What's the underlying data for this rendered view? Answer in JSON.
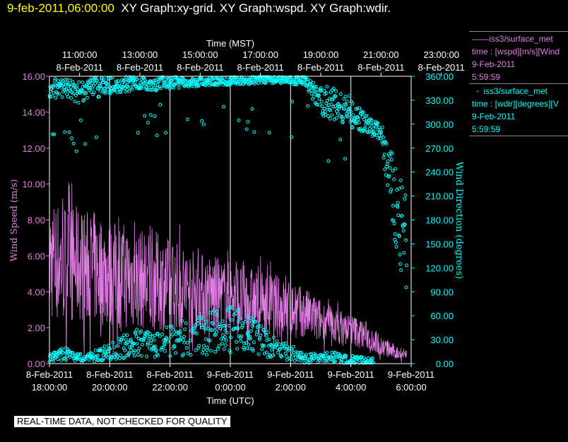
{
  "header": {
    "timestamp": "9-feb-2011,06:00:00",
    "graphs": "XY Graph:xy-grid.  XY Graph:wspd.  XY Graph:wdir."
  },
  "legend": {
    "wspd": {
      "symbol": "——",
      "station": "iss3/surface_met",
      "expr": "time : [wspd][m/s][Wind",
      "date": "9-Feb-2011",
      "time": "5:59:59"
    },
    "wdir": {
      "symbol": "◦",
      "station": "iss3/surface_met",
      "expr": "time : [wdir][degrees][V",
      "date": "9-Feb-2011",
      "time": "5:59:59"
    }
  },
  "note": "REAL-TIME DATA, NOT CHECKED FOR QUALITY",
  "colors": {
    "wspd": "#e17ee4",
    "wdir": "#00ffff",
    "grid": "#ffffff",
    "background": "#000000"
  },
  "chart_data": {
    "type": "line",
    "top_axis": {
      "label": "Time (MST)",
      "ticks": [
        {
          "time": "11:00:00",
          "date": "8-Feb-2011"
        },
        {
          "time": "13:00:00",
          "date": "8-Feb-2011"
        },
        {
          "time": "15:00:00",
          "date": "8-Feb-2011"
        },
        {
          "time": "17:00:00",
          "date": "8-Feb-2011"
        },
        {
          "time": "19:00:00",
          "date": "8-Feb-2011"
        },
        {
          "time": "21:00:00",
          "date": "8-Feb-2011"
        },
        {
          "time": "23:00:00",
          "date": "8-Feb-2011"
        }
      ]
    },
    "bottom_axis": {
      "label": "Time (UTC)",
      "ticks": [
        {
          "date": "8-Feb-2011",
          "time": "18:00:00"
        },
        {
          "date": "8-Feb-2011",
          "time": "20:00:00"
        },
        {
          "date": "8-Feb-2011",
          "time": "22:00:00"
        },
        {
          "date": "9-Feb-2011",
          "time": "0:00:00"
        },
        {
          "date": "9-Feb-2011",
          "time": "2:00:00"
        },
        {
          "date": "9-Feb-2011",
          "time": "4:00:00"
        },
        {
          "date": "9-Feb-2011",
          "time": "6:00:00"
        }
      ]
    },
    "x_range_utc": [
      "2011-02-08 18:00:00",
      "2011-02-09 06:00:00"
    ],
    "y_left": {
      "label": "Wind Speed (m/s)",
      "range": [
        0,
        16
      ],
      "ticks": [
        "0.00",
        "2.00",
        "4.00",
        "6.00",
        "8.00",
        "10.00",
        "12.00",
        "14.00",
        "16.00"
      ]
    },
    "y_right": {
      "label": "Wind Direction (degrees)",
      "range": [
        0,
        360
      ],
      "ticks": [
        "0.00",
        "30.00",
        "60.00",
        "90.00",
        "120.00",
        "150.00",
        "180.00",
        "210.00",
        "240.00",
        "270.00",
        "300.00",
        "330.00",
        "360.00"
      ]
    },
    "grid": true,
    "series": [
      {
        "name": "iss3/surface_met time : [wspd][m/s]",
        "axis": "left",
        "style": "line",
        "x_hours_utc": [
          18,
          18.5,
          19,
          19.5,
          20,
          20.5,
          21,
          21.5,
          22,
          22.5,
          23,
          23.5,
          24,
          24.5,
          25,
          25.5,
          26,
          26.5,
          27,
          27.5,
          28,
          28.5,
          29,
          29.5,
          30
        ],
        "mean": [
          5.8,
          5.6,
          5.5,
          5.3,
          5.0,
          4.9,
          4.7,
          4.6,
          4.4,
          4.2,
          4.0,
          3.8,
          3.7,
          3.5,
          3.3,
          3.2,
          3.0,
          2.8,
          2.4,
          2.1,
          1.9,
          1.6,
          1.0,
          0.6,
          0.5
        ],
        "spread": [
          3.5,
          3.5,
          3.2,
          3.2,
          3.0,
          3.0,
          2.8,
          2.8,
          2.6,
          2.4,
          2.2,
          2.2,
          2.0,
          2.0,
          1.8,
          1.8,
          1.6,
          1.4,
          1.2,
          1.0,
          0.9,
          0.8,
          0.6,
          0.4,
          0.3
        ]
      },
      {
        "name": "iss3/surface_met time : [wdir][degrees]",
        "axis": "right",
        "style": "scatter",
        "x_hours_utc": [
          18,
          18.5,
          19,
          19.5,
          20,
          20.5,
          21,
          21.5,
          22,
          22.5,
          23,
          23.5,
          24,
          24.5,
          25,
          25.5,
          26,
          26.5,
          27,
          27.5,
          28,
          28.5,
          29,
          29.5,
          30
        ],
        "mean": [
          345,
          345,
          344,
          346,
          348,
          350,
          352,
          350,
          352,
          352,
          353,
          354,
          354,
          355,
          356,
          356,
          355,
          354,
          330,
          325,
          315,
          300,
          290,
          190,
          130
        ],
        "spread": [
          12,
          12,
          18,
          14,
          10,
          10,
          8,
          8,
          8,
          6,
          6,
          5,
          5,
          5,
          5,
          5,
          5,
          6,
          18,
          22,
          20,
          12,
          12,
          60,
          60
        ],
        "low_band_mean": [
          8,
          12,
          6,
          10,
          15,
          22,
          26,
          22,
          30,
          32,
          36,
          40,
          42,
          38,
          30,
          18,
          14,
          6,
          8,
          8,
          4,
          2,
          0,
          0,
          0
        ]
      }
    ]
  }
}
